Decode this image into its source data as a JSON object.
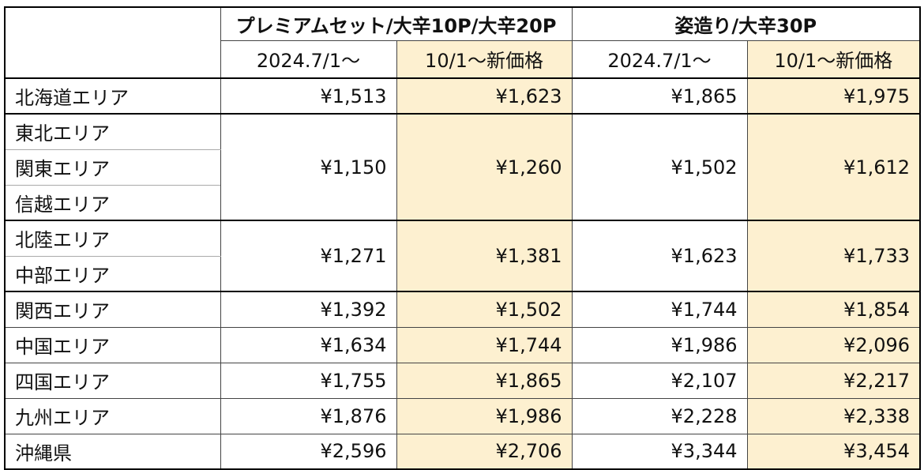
{
  "header": {
    "group1": "プレミアムセット/大辛10P/大辛20P",
    "group2": "姿造り/大辛30P",
    "sub_old": "2024.7/1～",
    "sub_new": "10/1～新価格"
  },
  "colors": {
    "new_price_bg": "#fdf0d0",
    "border": "#000000"
  },
  "areas": {
    "hokkaido": "北海道エリア",
    "tohoku": "東北エリア",
    "kanto": "関東エリア",
    "shinetsu": "信越エリア",
    "hokuriku": "北陸エリア",
    "chubu": "中部エリア",
    "kansai": "関西エリア",
    "chugoku": "中国エリア",
    "shikoku": "四国エリア",
    "kyushu": "九州エリア",
    "okinawa": "沖縄県"
  },
  "prices": {
    "hokkaido": {
      "g1_old": "¥1,513",
      "g1_new": "¥1,623",
      "g2_old": "¥1,865",
      "g2_new": "¥1,975"
    },
    "tohoku_kanto_shinetsu": {
      "g1_old": "¥1,150",
      "g1_new": "¥1,260",
      "g2_old": "¥1,502",
      "g2_new": "¥1,612"
    },
    "hokuriku_chubu": {
      "g1_old": "¥1,271",
      "g1_new": "¥1,381",
      "g2_old": "¥1,623",
      "g2_new": "¥1,733"
    },
    "kansai": {
      "g1_old": "¥1,392",
      "g1_new": "¥1,502",
      "g2_old": "¥1,744",
      "g2_new": "¥1,854"
    },
    "chugoku": {
      "g1_old": "¥1,634",
      "g1_new": "¥1,744",
      "g2_old": "¥1,986",
      "g2_new": "¥2,096"
    },
    "shikoku": {
      "g1_old": "¥1,755",
      "g1_new": "¥1,865",
      "g2_old": "¥2,107",
      "g2_new": "¥2,217"
    },
    "kyushu": {
      "g1_old": "¥1,876",
      "g1_new": "¥1,986",
      "g2_old": "¥2,228",
      "g2_new": "¥2,338"
    },
    "okinawa": {
      "g1_old": "¥2,596",
      "g1_new": "¥2,706",
      "g2_old": "¥3,344",
      "g2_new": "¥3,454"
    }
  }
}
